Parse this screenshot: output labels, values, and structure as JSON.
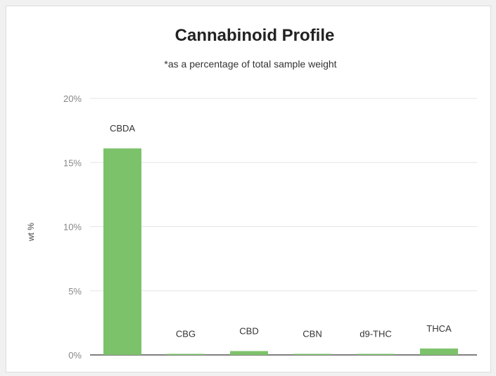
{
  "chart_data": {
    "type": "bar",
    "title": "Cannabinoid Profile",
    "subtitle": "*as a percentage of total sample weight",
    "ylabel": "wt %",
    "xlabel": "",
    "categories": [
      "CBDA",
      "CBG",
      "CBD",
      "CBN",
      "d9-THC",
      "THCA"
    ],
    "values": [
      16.1,
      0.08,
      0.3,
      0.02,
      0.05,
      0.5
    ],
    "ylim": [
      0,
      20
    ],
    "yticks": [
      "0%",
      "5%",
      "10%",
      "15%",
      "20%"
    ],
    "ytick_values": [
      0,
      5,
      10,
      15,
      20
    ],
    "grid": true,
    "legend": "none",
    "bar_color": "#7cc26a"
  }
}
